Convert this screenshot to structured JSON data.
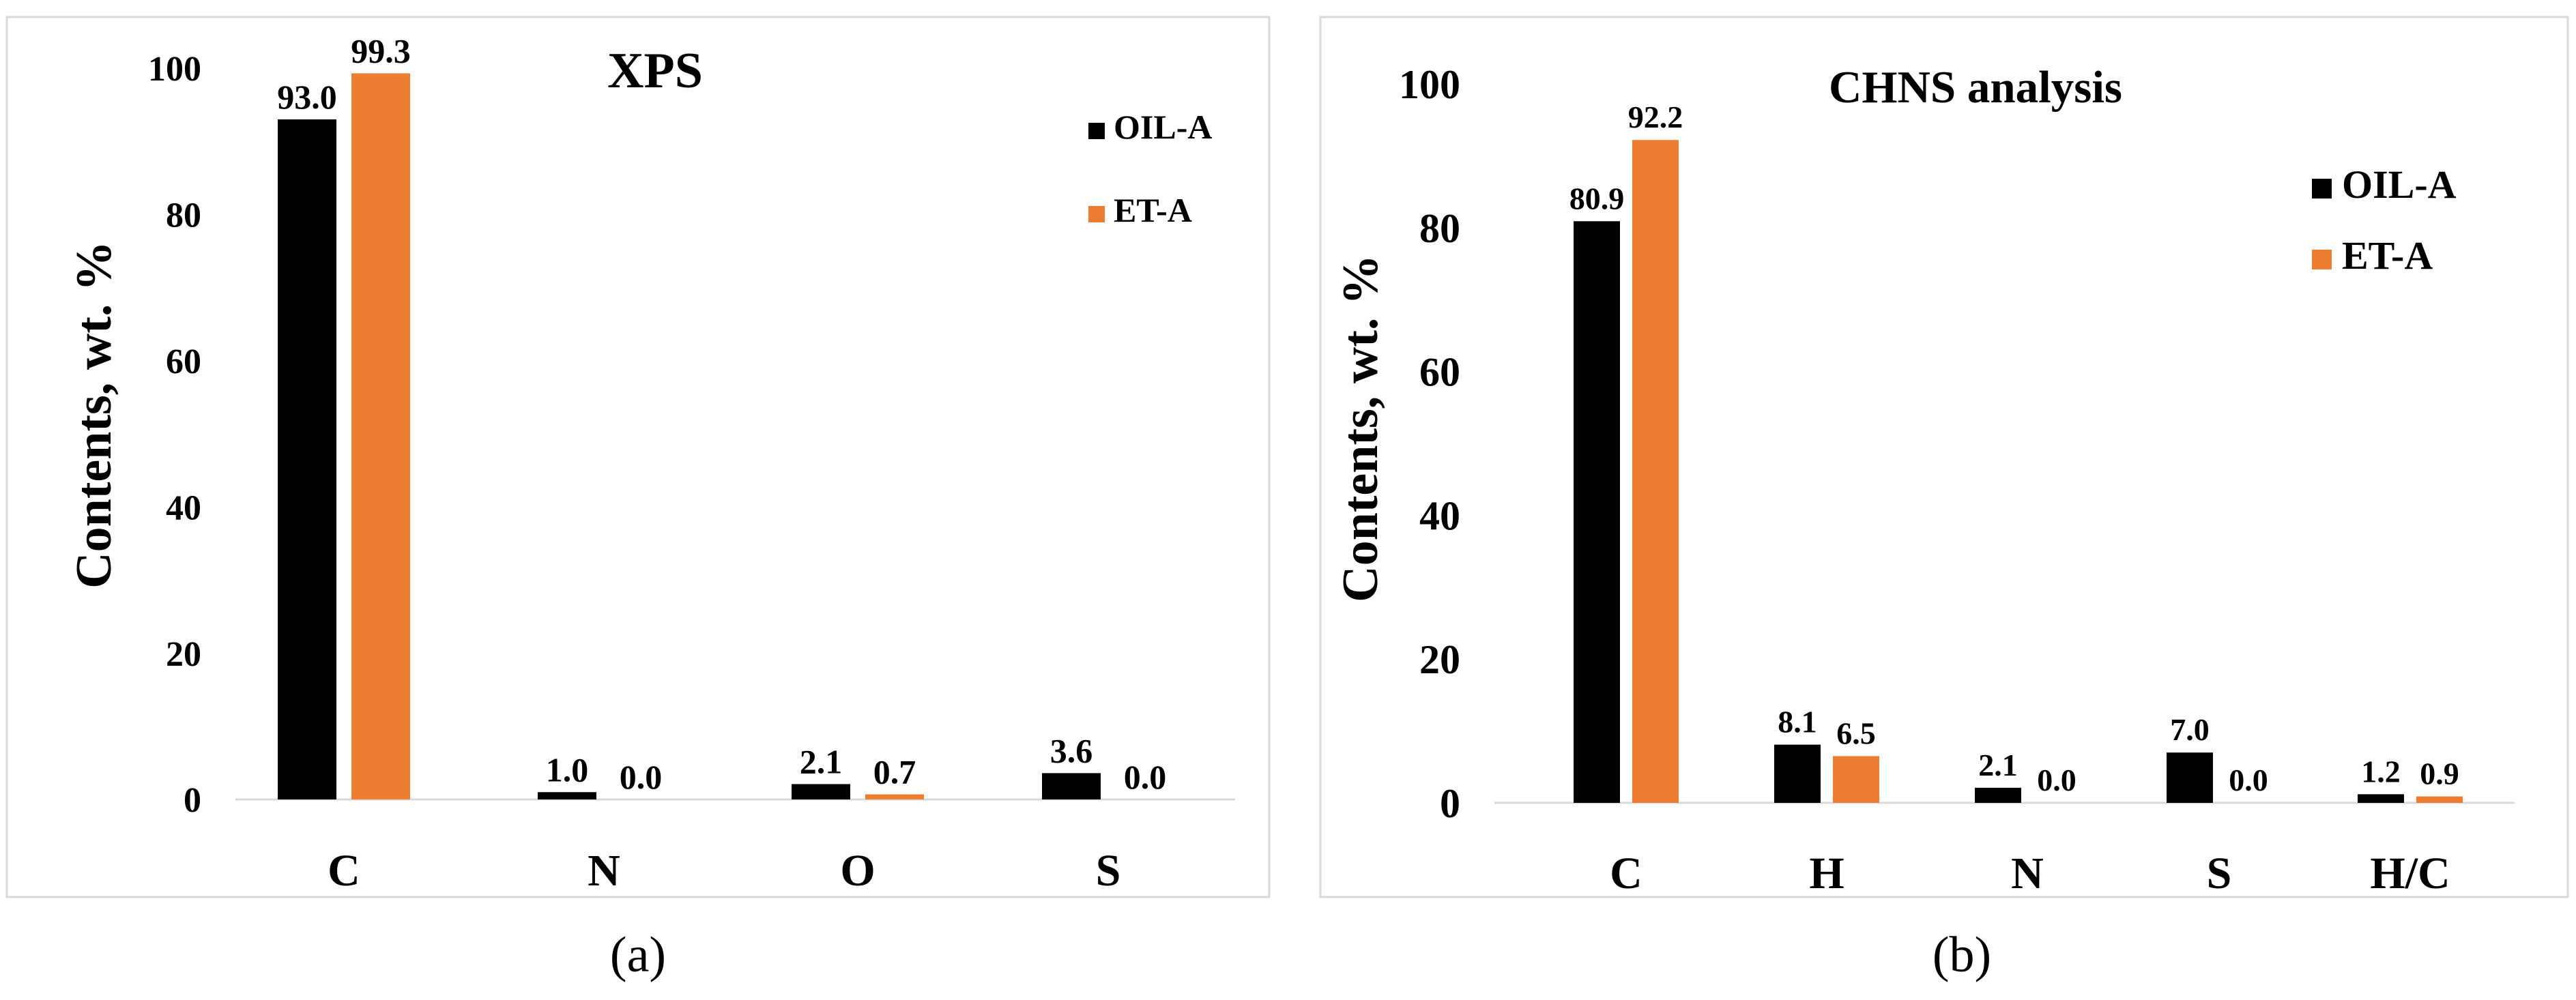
{
  "chart_data": [
    {
      "type": "bar",
      "title": "XPS",
      "ylabel": "Contents, wt. %",
      "xlabel": "",
      "categories": [
        "C",
        "N",
        "O",
        "S"
      ],
      "series": [
        {
          "name": "OIL-A",
          "color": "#000000",
          "values": [
            93.0,
            1.0,
            2.1,
            3.6
          ],
          "labels": [
            "93.0",
            "1.0",
            "2.1",
            "3.6"
          ]
        },
        {
          "name": "ET-A",
          "color": "#ED7D31",
          "values": [
            99.3,
            0.0,
            0.7,
            0.0
          ],
          "labels": [
            "99.3",
            "0.0",
            "0.7",
            "0.0"
          ]
        }
      ],
      "ylim": [
        0,
        100
      ],
      "yticks": [
        0,
        20,
        40,
        60,
        80,
        100
      ],
      "legend": "top-right",
      "caption": "(a)"
    },
    {
      "type": "bar",
      "title": "CHNS analysis",
      "ylabel": "Contents, wt. %",
      "xlabel": "",
      "categories": [
        "C",
        "H",
        "N",
        "S",
        "H/C"
      ],
      "series": [
        {
          "name": "OIL-A",
          "color": "#000000",
          "values": [
            80.9,
            8.1,
            2.1,
            7.0,
            1.2
          ],
          "labels": [
            "80.9",
            "8.1",
            "2.1",
            "7.0",
            "1.2"
          ]
        },
        {
          "name": "ET-A",
          "color": "#ED7D31",
          "values": [
            92.2,
            6.5,
            0.0,
            0.0,
            0.9
          ],
          "labels": [
            "92.2",
            "6.5",
            "0.0",
            "0.0",
            "0.9"
          ]
        }
      ],
      "ylim": [
        0,
        100
      ],
      "yticks": [
        0,
        20,
        40,
        60,
        80,
        100
      ],
      "legend": "top-right",
      "caption": "(b)"
    }
  ]
}
